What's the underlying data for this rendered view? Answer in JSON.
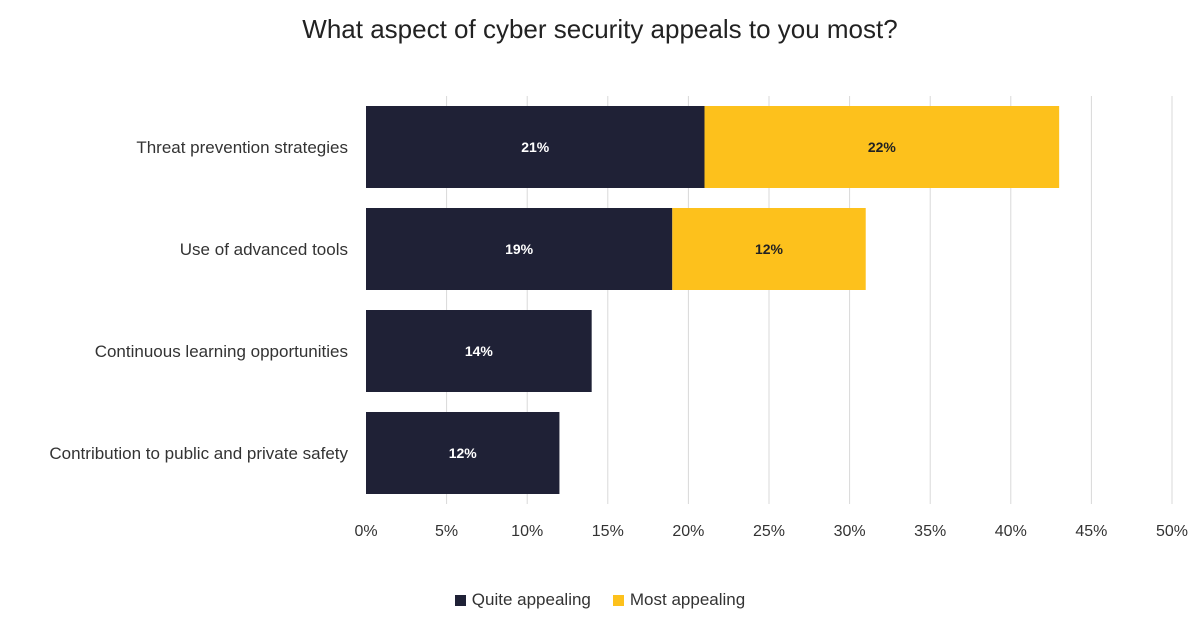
{
  "chart_data": {
    "type": "bar",
    "orientation": "horizontal",
    "stacked": true,
    "title": "What aspect of cyber security appeals to you most?",
    "categories": [
      "Threat prevention strategies",
      "Use of advanced tools",
      "Continuous learning opportunities",
      "Contribution to public and private safety"
    ],
    "series": [
      {
        "name": "Quite appealing",
        "color": "#1f2136",
        "label_color": "#ffffff",
        "values": [
          21,
          19,
          14,
          12
        ],
        "labels": [
          "21%",
          "19%",
          "14%",
          "12%"
        ]
      },
      {
        "name": "Most appealing",
        "color": "#fdc11c",
        "label_color": "#222222",
        "values": [
          22,
          12,
          0,
          0
        ],
        "labels": [
          "22%",
          "12%",
          "",
          ""
        ]
      }
    ],
    "xlim": [
      0,
      50
    ],
    "xticks": [
      0,
      5,
      10,
      15,
      20,
      25,
      30,
      35,
      40,
      45,
      50
    ],
    "xtick_labels": [
      "0%",
      "5%",
      "10%",
      "15%",
      "20%",
      "25%",
      "30%",
      "35%",
      "40%",
      "45%",
      "50%"
    ],
    "xlabel": "",
    "ylabel": "",
    "grid": "vertical",
    "legend_position": "bottom"
  }
}
